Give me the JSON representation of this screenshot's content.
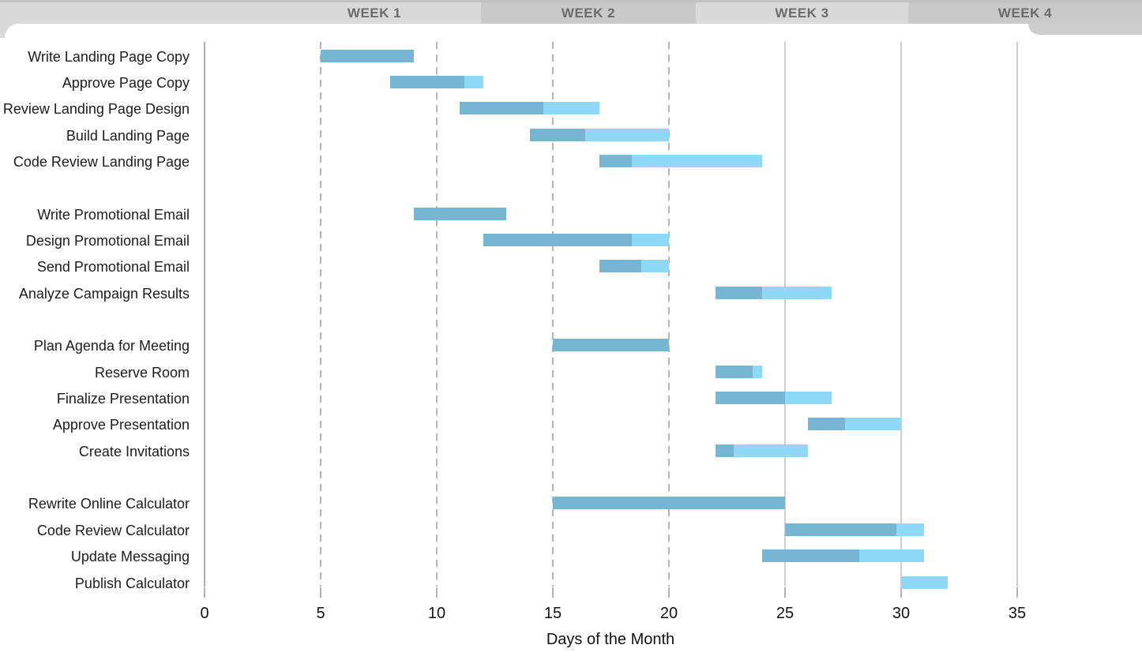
{
  "chart_data": {
    "type": "bar",
    "subtype": "gantt",
    "title": "",
    "xlabel": "Days of the Month",
    "x_ticks": [
      0,
      5,
      10,
      15,
      20,
      25,
      30,
      35
    ],
    "xlim": [
      0,
      40
    ],
    "grid": {
      "dashed_days": [
        5,
        10,
        15,
        20
      ],
      "solid_days": [
        25,
        30,
        35
      ],
      "axis_day": 0
    },
    "legend": "none",
    "week_headers": [
      "WEEK 1",
      "WEEK 2",
      "WEEK 3",
      "WEEK 4"
    ],
    "tasks": [
      {
        "label": "Write Landing Page Copy",
        "row": 0,
        "start": 5,
        "duration": 4,
        "pct_complete": 100
      },
      {
        "label": "Approve Page Copy",
        "row": 1,
        "start": 8,
        "duration": 4,
        "pct_complete": 80
      },
      {
        "label": "Review Landing Page Design",
        "row": 2,
        "start": 11,
        "duration": 6,
        "pct_complete": 60
      },
      {
        "label": "Build Landing Page",
        "row": 3,
        "start": 14,
        "duration": 6,
        "pct_complete": 40
      },
      {
        "label": "Code Review Landing Page",
        "row": 4,
        "start": 17,
        "duration": 7,
        "pct_complete": 20
      },
      {
        "label": "Write Promotional Email",
        "row": 6,
        "start": 9,
        "duration": 4,
        "pct_complete": 100
      },
      {
        "label": "Design Promotional Email",
        "row": 7,
        "start": 12,
        "duration": 8,
        "pct_complete": 80
      },
      {
        "label": "Send Promotional Email",
        "row": 8,
        "start": 17,
        "duration": 3,
        "pct_complete": 60
      },
      {
        "label": "Analyze Campaign Results",
        "row": 9,
        "start": 22,
        "duration": 5,
        "pct_complete": 40
      },
      {
        "label": "Plan Agenda for Meeting",
        "row": 11,
        "start": 15,
        "duration": 5,
        "pct_complete": 100
      },
      {
        "label": "Reserve Room",
        "row": 12,
        "start": 22,
        "duration": 2,
        "pct_complete": 80
      },
      {
        "label": "Finalize Presentation",
        "row": 13,
        "start": 22,
        "duration": 5,
        "pct_complete": 60
      },
      {
        "label": "Approve Presentation",
        "row": 14,
        "start": 26,
        "duration": 4,
        "pct_complete": 40
      },
      {
        "label": "Create Invitations",
        "row": 15,
        "start": 22,
        "duration": 4,
        "pct_complete": 20
      },
      {
        "label": "Rewrite Online Calculator",
        "row": 17,
        "start": 15,
        "duration": 10,
        "pct_complete": 100
      },
      {
        "label": "Code Review Calculator",
        "row": 18,
        "start": 25,
        "duration": 6,
        "pct_complete": 80
      },
      {
        "label": "Update Messaging",
        "row": 19,
        "start": 24,
        "duration": 7,
        "pct_complete": 60
      },
      {
        "label": "Publish Calculator",
        "row": 20,
        "start": 30,
        "duration": 2,
        "pct_complete": 0
      }
    ],
    "colors": {
      "bar_complete": "#76b6d2",
      "bar_remaining": "#8ed9f6",
      "header_light": "#d9d9d9",
      "header_dark": "#c9c9c9",
      "header_text": "#6b6b6b",
      "grid_dashed": "#b5b5b5",
      "grid_solid": "#cfcfcf",
      "text": "#1c1c1c"
    }
  }
}
